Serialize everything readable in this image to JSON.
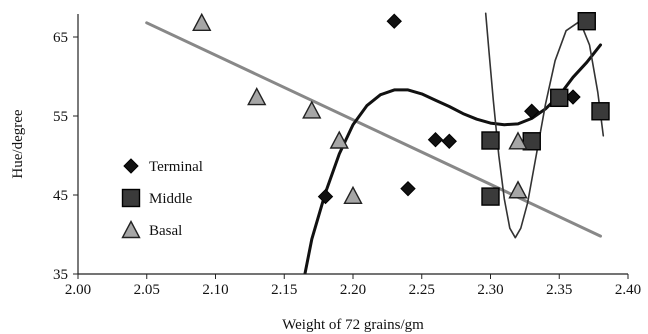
{
  "chart_data": {
    "type": "scatter",
    "xlabel": "Weight of 72 grains/gm",
    "ylabel": "Hue/degree",
    "xlim": [
      2.0,
      2.4
    ],
    "ylim": [
      35,
      68
    ],
    "x_ticks": [
      "2.00",
      "2.05",
      "2.10",
      "2.15",
      "2.20",
      "2.25",
      "2.30",
      "2.35",
      "2.40"
    ],
    "y_ticks": [
      "35",
      "45",
      "55",
      "65"
    ],
    "grid": false,
    "legend_position": "left",
    "series": [
      {
        "name": "Terminal",
        "marker": "diamond",
        "color": "#111111",
        "points": [
          [
            2.18,
            44.8
          ],
          [
            2.23,
            67.0
          ],
          [
            2.24,
            45.8
          ],
          [
            2.26,
            52.0
          ],
          [
            2.27,
            51.8
          ],
          [
            2.33,
            55.6
          ],
          [
            2.36,
            57.4
          ]
        ]
      },
      {
        "name": "Middle",
        "marker": "square",
        "color": "#444444",
        "points": [
          [
            2.3,
            44.8
          ],
          [
            2.3,
            51.9
          ],
          [
            2.33,
            51.8
          ],
          [
            2.35,
            57.3
          ],
          [
            2.37,
            67.0
          ],
          [
            2.38,
            55.6
          ]
        ]
      },
      {
        "name": "Basal",
        "marker": "triangle",
        "color": "#9a9a9a",
        "points": [
          [
            2.09,
            66.8
          ],
          [
            2.13,
            57.4
          ],
          [
            2.17,
            55.7
          ],
          [
            2.19,
            51.9
          ],
          [
            2.2,
            44.9
          ],
          [
            2.32,
            45.6
          ],
          [
            2.32,
            51.8
          ]
        ]
      }
    ],
    "trend_lines": [
      {
        "series": "Basal",
        "kind": "linear",
        "color": "#888888",
        "points": [
          [
            2.05,
            66.8
          ],
          [
            2.38,
            39.8
          ]
        ]
      },
      {
        "series": "Terminal",
        "kind": "polynomial",
        "color": "#111111",
        "points": [
          [
            2.165,
            35.0
          ],
          [
            2.17,
            39.4
          ],
          [
            2.18,
            45.3
          ],
          [
            2.19,
            50.2
          ],
          [
            2.2,
            53.9
          ],
          [
            2.21,
            56.3
          ],
          [
            2.22,
            57.7
          ],
          [
            2.23,
            58.3
          ],
          [
            2.24,
            58.3
          ],
          [
            2.25,
            57.8
          ],
          [
            2.26,
            57.0
          ],
          [
            2.27,
            56.2
          ],
          [
            2.28,
            55.3
          ],
          [
            2.29,
            54.6
          ],
          [
            2.3,
            54.1
          ],
          [
            2.31,
            53.9
          ],
          [
            2.32,
            54.0
          ],
          [
            2.33,
            54.7
          ],
          [
            2.34,
            55.9
          ],
          [
            2.35,
            57.6
          ],
          [
            2.36,
            59.9
          ],
          [
            2.37,
            61.8
          ],
          [
            2.38,
            64.0
          ]
        ]
      },
      {
        "series": "Middle",
        "kind": "polynomial",
        "color": "#333333",
        "points": [
          [
            2.2965,
            68.0
          ],
          [
            2.299,
            63.0
          ],
          [
            2.302,
            57.0
          ],
          [
            2.306,
            50.0
          ],
          [
            2.31,
            44.5
          ],
          [
            2.314,
            40.8
          ],
          [
            2.318,
            39.6
          ],
          [
            2.322,
            40.8
          ],
          [
            2.327,
            44.0
          ],
          [
            2.333,
            49.8
          ],
          [
            2.34,
            56.5
          ],
          [
            2.347,
            62.0
          ],
          [
            2.355,
            65.8
          ],
          [
            2.365,
            67.0
          ],
          [
            2.372,
            64.0
          ],
          [
            2.378,
            58.0
          ],
          [
            2.382,
            52.5
          ]
        ]
      }
    ]
  }
}
